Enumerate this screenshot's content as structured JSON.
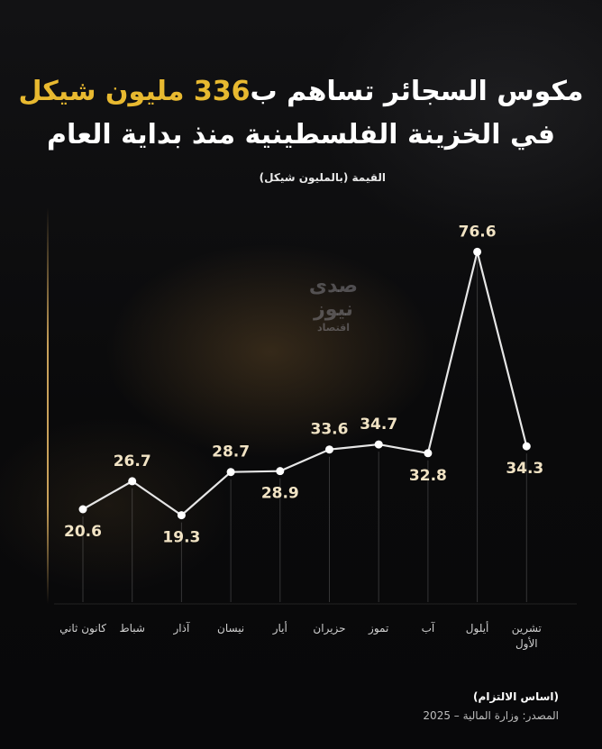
{
  "title": {
    "line1_before": "مكوس السجائر تساهم ب",
    "line1_highlight": "336 مليون شيكل",
    "line2": "في الخزينة الفلسطينية منذ بداية العام"
  },
  "colors": {
    "accent": "#e8b930",
    "line": "#e6e6e6",
    "labels": "#f1e3c4"
  },
  "watermark": {
    "text": "صدى نيوز",
    "sub": "اقتصاد"
  },
  "chart_data": {
    "type": "line",
    "ylabel": "القيمة (بالمليون شيكل)",
    "categories": [
      "كانون ثاني",
      "شباط",
      "آذار",
      "نيسان",
      "أيار",
      "حزيران",
      "تموز",
      "آب",
      "أيلول",
      "تشرين الأول"
    ],
    "values": [
      20.6,
      26.7,
      19.3,
      28.7,
      28.9,
      33.6,
      34.7,
      32.8,
      76.6,
      34.3
    ],
    "value_labels": [
      "20.6",
      "26.7",
      "19.3",
      "28.7",
      "28.9",
      "33.6",
      "34.7",
      "32.8",
      "76.6",
      "34.3"
    ],
    "grid": false
  },
  "source": {
    "basis": "(اساس الالتزام)",
    "text": "المصدر: وزارة المالية – 2025"
  }
}
